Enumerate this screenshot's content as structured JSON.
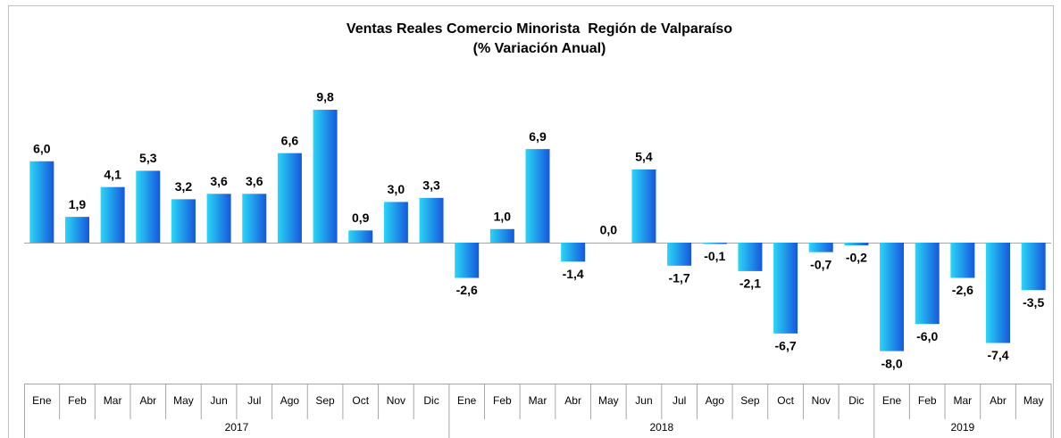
{
  "chart_data": {
    "type": "bar",
    "title": "Ventas Reales Comercio Minorista  Región de Valparaíso",
    "subtitle": "(% Variación Anual)",
    "color": [
      "#2ad6f7",
      "#1657dc"
    ],
    "groups": [
      {
        "name": "2017",
        "categories": [
          "Ene",
          "Feb",
          "Mar",
          "Abr",
          "May",
          "Jun",
          "Jul",
          "Ago",
          "Sep",
          "Oct",
          "Nov",
          "Dic"
        ],
        "values": [
          6.0,
          1.9,
          4.1,
          5.3,
          3.2,
          3.6,
          3.6,
          6.6,
          9.8,
          0.9,
          3.0,
          3.3
        ],
        "value_labels": [
          "6,0",
          "1,9",
          "4,1",
          "5,3",
          "3,2",
          "3,6",
          "3,6",
          "6,6",
          "9,8",
          "0,9",
          "3,0",
          "3,3"
        ]
      },
      {
        "name": "2018",
        "categories": [
          "Ene",
          "Feb",
          "Mar",
          "Abr",
          "May",
          "Jun",
          "Jul",
          "Ago",
          "Sep",
          "Oct",
          "Nov",
          "Dic"
        ],
        "values": [
          -2.6,
          1.0,
          6.9,
          -1.4,
          0.0,
          5.4,
          -1.7,
          -0.1,
          -2.1,
          -6.7,
          -0.7,
          -0.2
        ],
        "value_labels": [
          "-2,6",
          "1,0",
          "6,9",
          "-1,4",
          "0,0",
          "5,4",
          "-1,7",
          "-0,1",
          "-2,1",
          "-6,7",
          "-0,7",
          "-0,2"
        ]
      },
      {
        "name": "2019",
        "categories": [
          "Ene",
          "Feb",
          "Mar",
          "Abr",
          "May"
        ],
        "values": [
          -8.0,
          -6.0,
          -2.6,
          -7.4,
          -3.5
        ],
        "value_labels": [
          "-8,0",
          "-6,0",
          "-2,6",
          "-7,4",
          "-3,5"
        ]
      }
    ]
  }
}
